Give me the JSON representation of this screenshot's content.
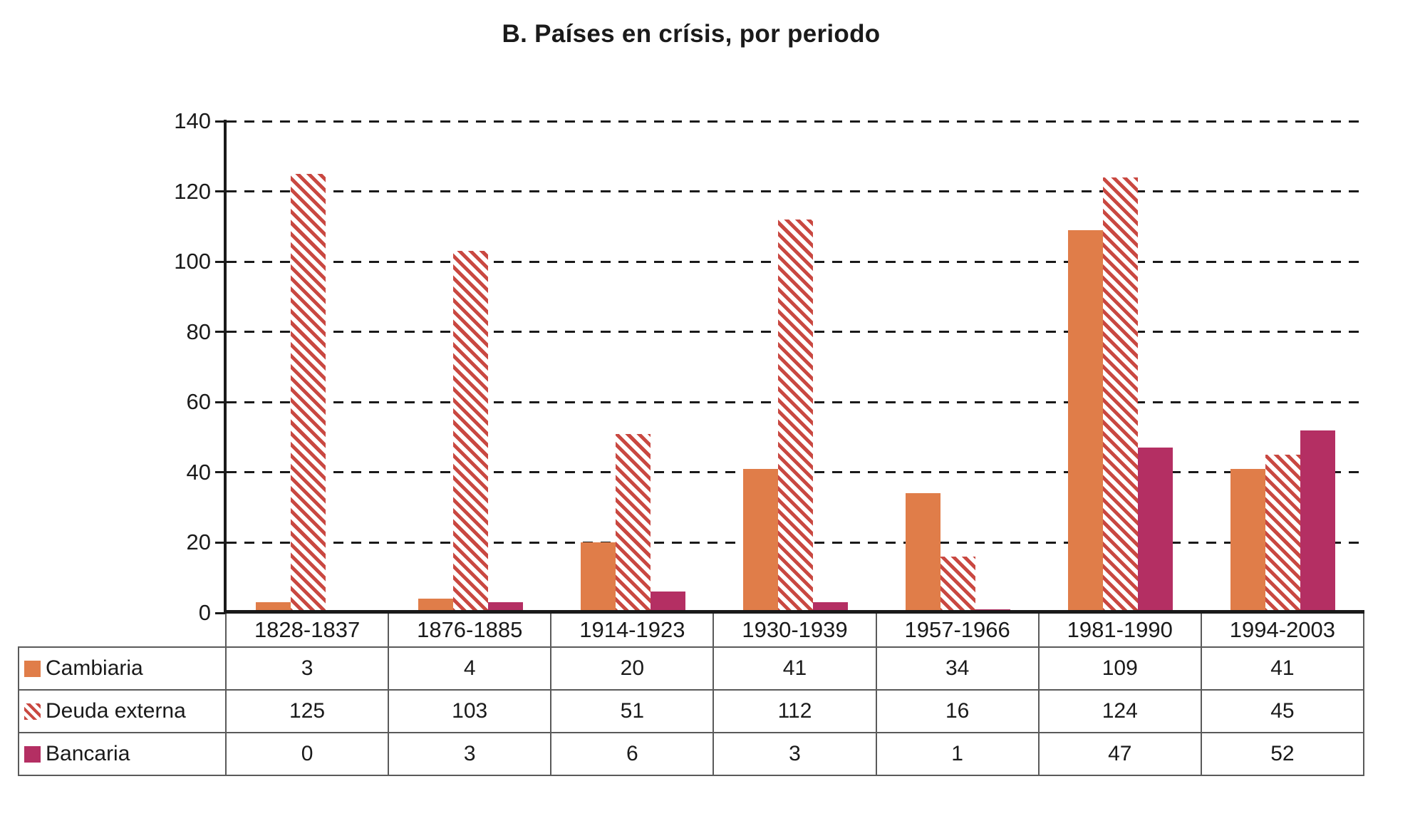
{
  "title": "B. Países en crísis, por periodo",
  "colors": {
    "cambiaria_fill": "#E07D49",
    "deuda_externa_stripe": "#C94841",
    "bancaria_fill": "#B42F63",
    "axis_color": "#1a1a1a",
    "table_border_color": "#5a5a5a"
  },
  "chart_data": {
    "type": "bar",
    "title": "B. Países en crísis, por periodo",
    "categories": [
      "1828-1837",
      "1876-1885",
      "1914-1923",
      "1930-1939",
      "1957-1966",
      "1981-1990",
      "1994-2003"
    ],
    "series": [
      {
        "name": "Cambiaria",
        "style": "solid-orange",
        "values": [
          3,
          4,
          20,
          41,
          34,
          109,
          41
        ]
      },
      {
        "name": "Deuda externa",
        "style": "hatched-red",
        "values": [
          125,
          103,
          51,
          112,
          16,
          124,
          45
        ]
      },
      {
        "name": "Bancaria",
        "style": "solid-magenta",
        "values": [
          0,
          3,
          6,
          3,
          1,
          47,
          52
        ]
      }
    ],
    "xlabel": "",
    "ylabel": "",
    "ylim": [
      0,
      140
    ],
    "ytick_step": 20,
    "yticks": [
      0,
      20,
      40,
      60,
      80,
      100,
      120,
      140
    ],
    "grid": "horizontal-dashed",
    "legend_position": "data-table-left"
  }
}
